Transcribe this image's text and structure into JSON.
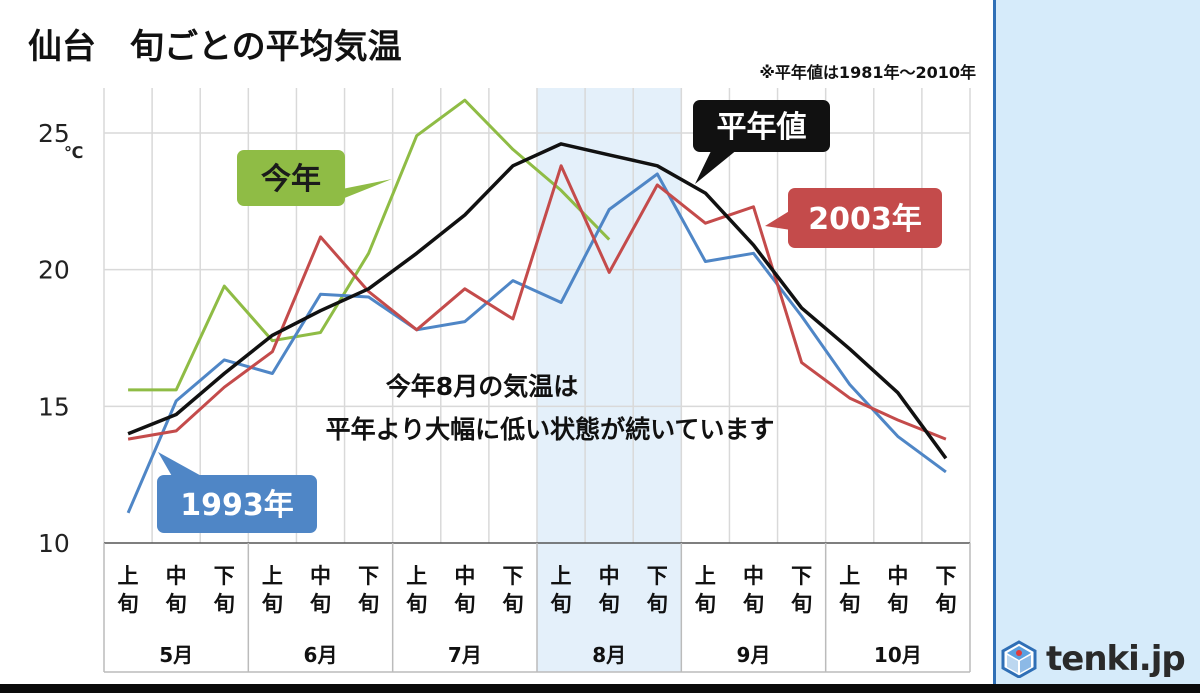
{
  "title": "仙台　旬ごとの平均気温",
  "note": "※平年値は1981年～2010年",
  "unit": "℃",
  "annotation": [
    "今年8月の気温は",
    "平年より大幅に低い状態が続いています"
  ],
  "logo": {
    "text": "tenki.jp",
    "icon": "tenki-logo-icon"
  },
  "colors": {
    "kotoshi": "#8fbc45",
    "heinen": "#111111",
    "y2003": "#c44b4b",
    "y1993": "#4f86c6",
    "highlight": "#e4f0fa",
    "grid": "#d9d9d9"
  },
  "chart_data": {
    "type": "line",
    "title": "仙台　旬ごとの平均気温",
    "ylim": [
      10,
      25
    ],
    "yticks": [
      10,
      15,
      20,
      25
    ],
    "yunit": "℃",
    "x_dekads": [
      "上旬",
      "中旬",
      "下旬",
      "上旬",
      "中旬",
      "下旬",
      "上旬",
      "中旬",
      "下旬",
      "上旬",
      "中旬",
      "下旬",
      "上旬",
      "中旬",
      "下旬",
      "上旬",
      "中旬",
      "下旬"
    ],
    "months": [
      "5月",
      "6月",
      "7月",
      "8月",
      "9月",
      "10月"
    ],
    "highlight_month": "8月",
    "grid": true,
    "series": [
      {
        "name": "今年",
        "key": "kotoshi",
        "values": [
          15.6,
          15.6,
          19.4,
          17.4,
          17.7,
          20.6,
          24.9,
          26.2,
          24.4,
          22.9,
          21.1,
          null,
          null,
          null,
          null,
          null,
          null,
          null
        ]
      },
      {
        "name": "平年値",
        "key": "heinen",
        "values": [
          14.0,
          14.7,
          16.2,
          17.6,
          18.5,
          19.3,
          20.6,
          22.0,
          23.8,
          24.6,
          24.2,
          23.8,
          22.8,
          20.9,
          18.6,
          17.1,
          15.5,
          13.1
        ]
      },
      {
        "name": "2003年",
        "key": "y2003",
        "values": [
          13.8,
          14.1,
          15.7,
          17.0,
          21.2,
          19.2,
          17.8,
          19.3,
          18.2,
          23.8,
          19.9,
          23.1,
          21.7,
          22.3,
          16.6,
          15.3,
          14.5,
          13.8
        ]
      },
      {
        "name": "1993年",
        "key": "y1993",
        "values": [
          11.1,
          15.2,
          16.7,
          16.2,
          19.1,
          19.0,
          17.8,
          18.1,
          19.6,
          18.8,
          22.2,
          23.5,
          20.3,
          20.6,
          18.3,
          15.8,
          13.9,
          12.6
        ]
      }
    ]
  }
}
